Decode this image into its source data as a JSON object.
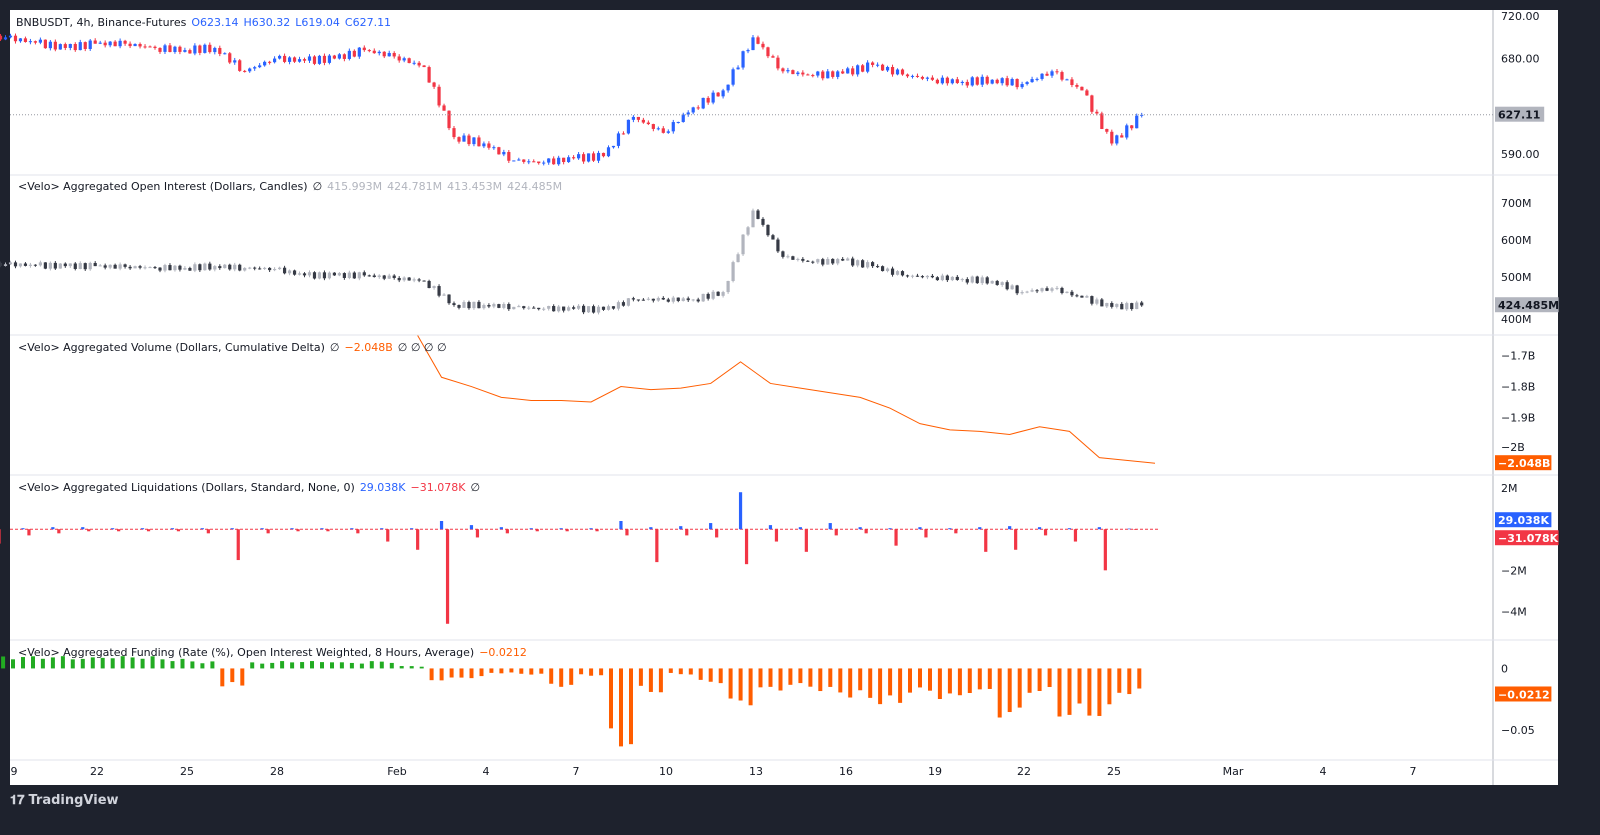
{
  "header": {
    "symbol": "BNBUSDT, 4h, Binance-Futures",
    "open": "O623.14",
    "high": "H630.32",
    "low": "L619.04",
    "close": "C627.11"
  },
  "panes": {
    "oi": {
      "title": "<Velo> Aggregated Open Interest (Dollars, Candles)",
      "empty": "∅",
      "values": [
        "415.993M",
        "424.781M",
        "413.453M",
        "424.485M"
      ]
    },
    "cvd": {
      "title": "<Velo> Aggregated Volume (Dollars, Cumulative Delta)",
      "empty": "∅",
      "value": "−2.048B",
      "rest": "∅ ∅ ∅ ∅"
    },
    "liq": {
      "title": "<Velo> Aggregated Liquidations (Dollars, Standard, None, 0)",
      "short": "29.038K",
      "long": "−31.078K",
      "empty": "∅"
    },
    "funding": {
      "title": "<Velo> Aggregated Funding (Rate (%), Open Interest Weighted, 8 Hours, Average)",
      "value": "−0.0212"
    }
  },
  "footer": {
    "brand": "TradingView"
  },
  "colors": {
    "up": "#2962ff",
    "down": "#f23645",
    "oi_up": "#b2b5be",
    "oi_down": "#363a45",
    "cvd": "#ff5d00",
    "fund_pos": "#22ab22",
    "fund_neg": "#ff5d00"
  },
  "chart_data": [
    {
      "type": "candlestick",
      "pane": "price",
      "title": "BNBUSDT, 4h, Binance-Futures",
      "ylim": [
        575,
        722
      ],
      "yticks": [
        "720.00",
        "680.00",
        "590.00"
      ],
      "last_label": "627.11",
      "last": 627.11,
      "dates": [
        "Jan 19",
        "Jan 20",
        "Jan 21",
        "Jan 22",
        "Jan 23",
        "Jan 24",
        "Jan 25",
        "Jan 26",
        "Jan 27",
        "Jan 28",
        "Jan 29",
        "Jan 30",
        "Jan 31",
        "Feb 1",
        "Feb 2",
        "Feb 3",
        "Feb 4",
        "Feb 5",
        "Feb 6",
        "Feb 7",
        "Feb 8",
        "Feb 9",
        "Feb 10",
        "Feb 11",
        "Feb 12",
        "Feb 13",
        "Feb 14",
        "Feb 15",
        "Feb 16",
        "Feb 17",
        "Feb 18",
        "Feb 19",
        "Feb 20",
        "Feb 21",
        "Feb 22",
        "Feb 23",
        "Feb 24",
        "Feb 25",
        "Feb 26"
      ],
      "close": [
        700,
        695,
        690,
        694,
        694,
        690,
        688,
        690,
        668,
        680,
        678,
        680,
        688,
        682,
        672,
        606,
        600,
        584,
        582,
        586,
        588,
        625,
        610,
        634,
        650,
        700,
        668,
        664,
        666,
        674,
        665,
        660,
        658,
        660,
        656,
        668,
        650,
        600,
        627
      ]
    },
    {
      "type": "candlestick",
      "pane": "oi",
      "unit": "M",
      "ylim": [
        390,
        730
      ],
      "yticks": [
        "700M",
        "600M",
        "500M",
        "400M"
      ],
      "last_label": "424.485M",
      "last": 424.485,
      "close": [
        535,
        532,
        530,
        530,
        528,
        526,
        525,
        530,
        525,
        522,
        505,
        505,
        505,
        498,
        490,
        425,
        425,
        420,
        415,
        415,
        412,
        440,
        440,
        440,
        460,
        680,
        555,
        540,
        545,
        530,
        505,
        500,
        495,
        490,
        460,
        470,
        445,
        420,
        424
      ]
    },
    {
      "type": "line",
      "pane": "cvd",
      "unit": "B",
      "ylim": [
        -2.07,
        -1.63
      ],
      "yticks": [
        "−1.7B",
        "−1.8B",
        "−1.9B",
        "−2B"
      ],
      "last_label": "−2.048B",
      "last": -2.048,
      "dates": [
        "Feb 2",
        "Feb 3",
        "Feb 4",
        "Feb 5",
        "Feb 6",
        "Feb 7",
        "Feb 8",
        "Feb 9",
        "Feb 10",
        "Feb 11",
        "Feb 12",
        "Feb 13",
        "Feb 14",
        "Feb 15",
        "Feb 16",
        "Feb 17",
        "Feb 18",
        "Feb 19",
        "Feb 20",
        "Feb 21",
        "Feb 22",
        "Feb 23",
        "Feb 24",
        "Feb 25",
        "Feb 26"
      ],
      "values": [
        -1.635,
        -1.77,
        -1.8,
        -1.835,
        -1.845,
        -1.845,
        -1.85,
        -1.8,
        -1.81,
        -1.805,
        -1.79,
        -1.72,
        -1.79,
        -1.805,
        -1.82,
        -1.835,
        -1.87,
        -1.92,
        -1.94,
        -1.945,
        -1.955,
        -1.93,
        -1.945,
        -2.03,
        -2.048
      ]
    },
    {
      "type": "bar",
      "pane": "liquidations",
      "unit": "M",
      "ylim": [
        -5,
        2.2
      ],
      "yticks": [
        "2M",
        "−2M",
        "−4M"
      ],
      "short": [
        0.1,
        0.05,
        0.1,
        0.1,
        0.05,
        0.05,
        0.05,
        0.05,
        0.05,
        0.05,
        0.05,
        0.05,
        0.05,
        0.05,
        0.05,
        0.4,
        0.2,
        0.1,
        0.05,
        0.05,
        0.05,
        0.4,
        0.1,
        0.15,
        0.3,
        1.8,
        0.2,
        0.1,
        0.3,
        0.1,
        0.05,
        0.1,
        0.05,
        0.1,
        0.15,
        0.1,
        0.05,
        0.1,
        0.03
      ],
      "long": [
        -0.7,
        -0.3,
        -0.2,
        -0.1,
        -0.1,
        -0.1,
        -0.1,
        -0.2,
        -1.5,
        -0.2,
        -0.1,
        -0.1,
        -0.2,
        -0.6,
        -1.0,
        -4.6,
        -0.4,
        -0.2,
        -0.1,
        -0.1,
        -0.1,
        -0.3,
        -1.6,
        -0.3,
        -0.4,
        -1.7,
        -0.6,
        -1.1,
        -0.3,
        -0.2,
        -0.8,
        -0.4,
        -0.2,
        -1.1,
        -1.0,
        -0.3,
        -0.6,
        -2.0,
        -0.03
      ]
    },
    {
      "type": "bar",
      "pane": "funding",
      "unit": "%",
      "ylim": [
        -0.068,
        0.015
      ],
      "yticks": [
        "0",
        "−0.05"
      ],
      "last_label": "−0.0212",
      "last": -0.0212,
      "values": [
        0.01,
        0.01,
        0.01,
        0.009,
        0.01,
        0.01,
        0.008,
        0.006,
        -0.015,
        0.005,
        0.006,
        0.006,
        0.005,
        0.006,
        0.002,
        -0.01,
        -0.008,
        -0.004,
        -0.005,
        -0.015,
        -0.006,
        -0.065,
        -0.02,
        -0.005,
        -0.012,
        -0.03,
        -0.018,
        -0.015,
        -0.02,
        -0.025,
        -0.03,
        -0.02,
        -0.025,
        -0.02,
        -0.04,
        -0.02,
        -0.04,
        -0.04,
        -0.0212
      ]
    }
  ],
  "xaxis": {
    "ticks": [
      "9",
      "22",
      "25",
      "28",
      "Feb",
      "4",
      "7",
      "10",
      "13",
      "16",
      "19",
      "22",
      "25",
      "Mar",
      "4",
      "7"
    ]
  }
}
